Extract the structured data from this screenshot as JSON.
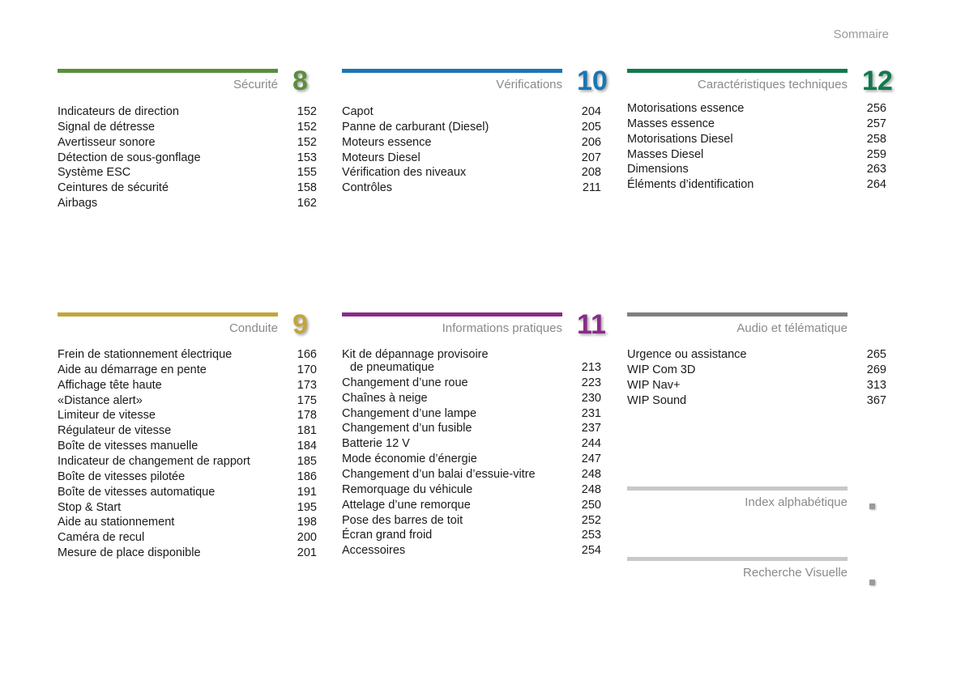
{
  "header": {
    "title": "Sommaire"
  },
  "sections": [
    {
      "title": "Sécurité",
      "number": 8,
      "color": "#5b8e3e",
      "items": [
        {
          "label": "Indicateurs de direction",
          "page": 152
        },
        {
          "label": "Signal de détresse",
          "page": 152
        },
        {
          "label": "Avertisseur sonore",
          "page": 152
        },
        {
          "label": "Détection de sous-gonflage",
          "page": 153
        },
        {
          "label": "Système ESC",
          "page": 155
        },
        {
          "label": "Ceintures de sécurité",
          "page": 158
        },
        {
          "label": "Airbags",
          "page": 162
        }
      ]
    },
    {
      "title": "Vérifications",
      "number": 10,
      "color": "#1b76b2",
      "items": [
        {
          "label": "Capot",
          "page": 204
        },
        {
          "label": "Panne de carburant (Diesel)",
          "page": 205
        },
        {
          "label": "Moteurs essence",
          "page": 206
        },
        {
          "label": "Moteurs Diesel",
          "page": 207
        },
        {
          "label": "Vérification des niveaux",
          "page": 208
        },
        {
          "label": "Contrôles",
          "page": 211
        }
      ]
    },
    {
      "title": "Caractéristiques techniques",
      "number": 12,
      "color": "#107a4c",
      "items": [
        {
          "label": "Motorisations essence",
          "page": 256
        },
        {
          "label": "Masses essence",
          "page": 257
        },
        {
          "label": "Motorisations Diesel",
          "page": 258
        },
        {
          "label": "Masses Diesel",
          "page": 259
        },
        {
          "label": "Dimensions",
          "page": 263
        },
        {
          "label": "Éléments d’identification",
          "page": 264
        }
      ]
    },
    {
      "title": "Conduite",
      "number": 9,
      "color": "#c1a63c",
      "items": [
        {
          "label": "Frein de stationnement électrique",
          "page": 166
        },
        {
          "label": "Aide au démarrage en pente",
          "page": 170
        },
        {
          "label": "Affichage tête haute",
          "page": 173
        },
        {
          "label": "«Distance alert»",
          "page": 175
        },
        {
          "label": "Limiteur de vitesse",
          "page": 178
        },
        {
          "label": "Régulateur de vitesse",
          "page": 181
        },
        {
          "label": "Boîte de vitesses manuelle",
          "page": 184
        },
        {
          "label": "Indicateur de changement de rapport",
          "page": 185
        },
        {
          "label": "Boîte de vitesses pilotée",
          "page": 186
        },
        {
          "label": "Boîte de vitesses automatique",
          "page": 191
        },
        {
          "label": "Stop & Start",
          "page": 195
        },
        {
          "label": "Aide au stationnement",
          "page": 198
        },
        {
          "label": "Caméra de recul",
          "page": 200
        },
        {
          "label": "Mesure de place disponible",
          "page": 201
        }
      ]
    },
    {
      "title": "Informations pratiques",
      "number": 11,
      "color": "#8b2b88",
      "items": [
        {
          "label": "Kit de dépannage provisoire",
          "continuation": "de pneumatique",
          "page": 213
        },
        {
          "label": "Changement d’une roue",
          "page": 223
        },
        {
          "label": "Chaînes à neige",
          "page": 230
        },
        {
          "label": "Changement d’une lampe",
          "page": 231
        },
        {
          "label": "Changement d’un fusible",
          "page": 237
        },
        {
          "label": "Batterie 12 V",
          "page": 244
        },
        {
          "label": "Mode économie d’énergie",
          "page": 247
        },
        {
          "label": "Changement d’un balai d’essuie-vitre",
          "page": 248
        },
        {
          "label": "Remorquage du véhicule",
          "page": 248
        },
        {
          "label": "Attelage d’une remorque",
          "page": 250
        },
        {
          "label": "Pose des barres de toit",
          "page": 252
        },
        {
          "label": "Écran grand froid",
          "page": 253
        },
        {
          "label": "Accessoires",
          "page": 254
        }
      ]
    },
    {
      "title": "Audio et télématique",
      "color": "#7f7f7f",
      "items": [
        {
          "label": "Urgence ou assistance",
          "page": 265
        },
        {
          "label": "WIP Com 3D",
          "page": 269
        },
        {
          "label": "WIP Nav+",
          "page": 313
        },
        {
          "label": "WIP Sound",
          "page": 367
        }
      ]
    }
  ],
  "links": [
    {
      "title": "Index alphabétique"
    },
    {
      "title": "Recherche Visuelle"
    }
  ]
}
